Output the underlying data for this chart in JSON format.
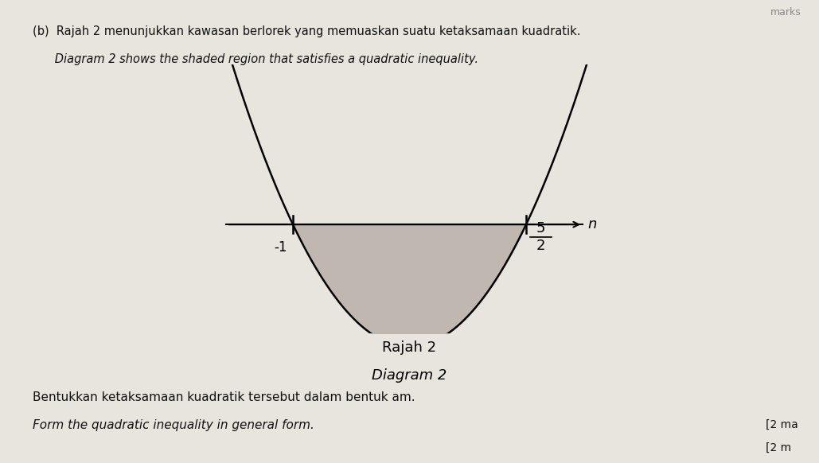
{
  "title_line1": "Rajah 2",
  "title_line2": "Diagram 2",
  "root1": -1,
  "root2": 2.5,
  "axis_label": "n",
  "background_color": "#e8e4de",
  "parabola_color": "#000000",
  "shade_color": "#c0b8b0",
  "axis_color": "#000000",
  "text_root1": "-1",
  "text_root2_num": "5",
  "text_root2_den": "2",
  "figsize": [
    10.29,
    5.82
  ],
  "dpi": 100,
  "header_text1": "(b)  Rajah 2 menunjukkan kawasan berlorek yang memuaskan suatu ketaksamaan kuadratik.",
  "header_text2": "      Diagram 2 shows the shaded region that satisfies a quadratic inequality.",
  "footer_text1": "Bentukkan ketaksamaan kuadratik tersebut dalam bentuk am.",
  "footer_text2": "Form the quadratic inequality in general form.",
  "marks_text1": "[2 ma",
  "marks_text2": "[2 m",
  "corner_text": "marks"
}
